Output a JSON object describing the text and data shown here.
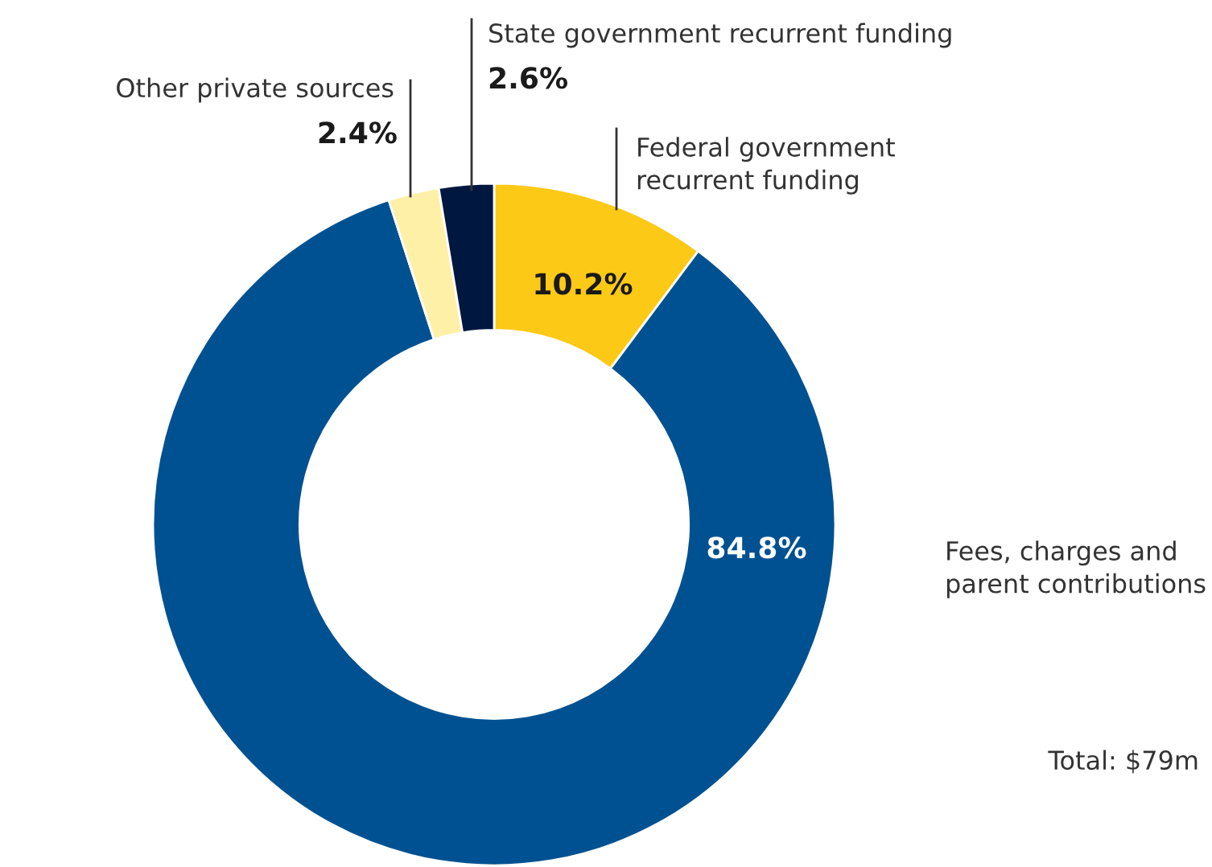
{
  "chart_data": {
    "type": "donut",
    "categories": [
      "Federal government recurrent funding",
      "Fees, charges and parent contributions",
      "Other private sources",
      "State government recurrent funding"
    ],
    "values": [
      10.2,
      84.8,
      2.4,
      2.6
    ],
    "value_labels": [
      "10.2%",
      "84.8%",
      "2.4%",
      "2.6%"
    ],
    "colors": [
      "#fcc917",
      "#005191",
      "#fff0a8",
      "#00173f"
    ],
    "annotations": [
      "Total: $79m"
    ]
  }
}
